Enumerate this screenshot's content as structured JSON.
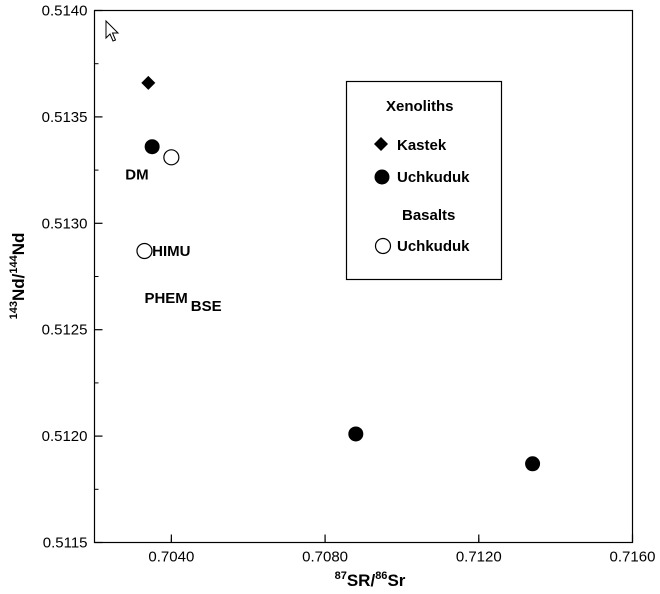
{
  "chart_data": {
    "type": "scatter",
    "xlabel": {
      "sup1": "87",
      "main1": "SR/",
      "sup2": "86",
      "main2": "Sr"
    },
    "ylabel": {
      "sup1": "143",
      "main1": "Nd/",
      "sup2": "144",
      "main2": "Nd"
    },
    "xlim": [
      0.702,
      0.716
    ],
    "ylim": [
      0.5115,
      0.514
    ],
    "x_ticks": [
      0.704,
      0.708,
      0.712,
      0.716
    ],
    "x_tick_labels": [
      "0.7040",
      "0.7080",
      "0.7120",
      "0.7160"
    ],
    "y_ticks": [
      0.5115,
      0.512,
      0.5125,
      0.513,
      0.5135,
      0.514
    ],
    "y_tick_labels": [
      "0.5115",
      "0.5120",
      "0.5125",
      "0.5130",
      "0.5135",
      "0.5140"
    ],
    "grid": false,
    "legend_position": "top-right",
    "legend": {
      "groups": [
        {
          "title": "Xenoliths",
          "entries": [
            {
              "label": "Kastek",
              "marker": "diamond-filled"
            },
            {
              "label": "Uchkuduk",
              "marker": "circle-filled"
            }
          ]
        },
        {
          "title": "Basalts",
          "entries": [
            {
              "label": "Uchkuduk",
              "marker": "circle-open"
            }
          ]
        }
      ]
    },
    "series": [
      {
        "name": "Xenoliths Kastek",
        "marker": "diamond-filled",
        "points": [
          {
            "x": 0.7034,
            "y": 0.51366
          }
        ]
      },
      {
        "name": "Xenoliths Uchkuduk",
        "marker": "circle-filled",
        "points": [
          {
            "x": 0.7035,
            "y": 0.51336
          },
          {
            "x": 0.7088,
            "y": 0.51201
          },
          {
            "x": 0.7134,
            "y": 0.51187
          }
        ]
      },
      {
        "name": "Basalts Uchkuduk",
        "marker": "circle-open",
        "points": [
          {
            "x": 0.704,
            "y": 0.51331
          },
          {
            "x": 0.7033,
            "y": 0.51287
          }
        ]
      }
    ],
    "annotations": [
      {
        "text": "DM",
        "x": 0.7028,
        "y": 0.51323
      },
      {
        "text": "HIMU",
        "x": 0.7035,
        "y": 0.51287
      },
      {
        "text": "PHEM",
        "sub": "BSE",
        "x": 0.7033,
        "y": 0.51265
      }
    ],
    "colors": {
      "marker": "#000000",
      "background": "#ffffff",
      "axis": "#000000"
    }
  },
  "ui": {
    "cursor_icon": "arrow-cursor-icon"
  }
}
